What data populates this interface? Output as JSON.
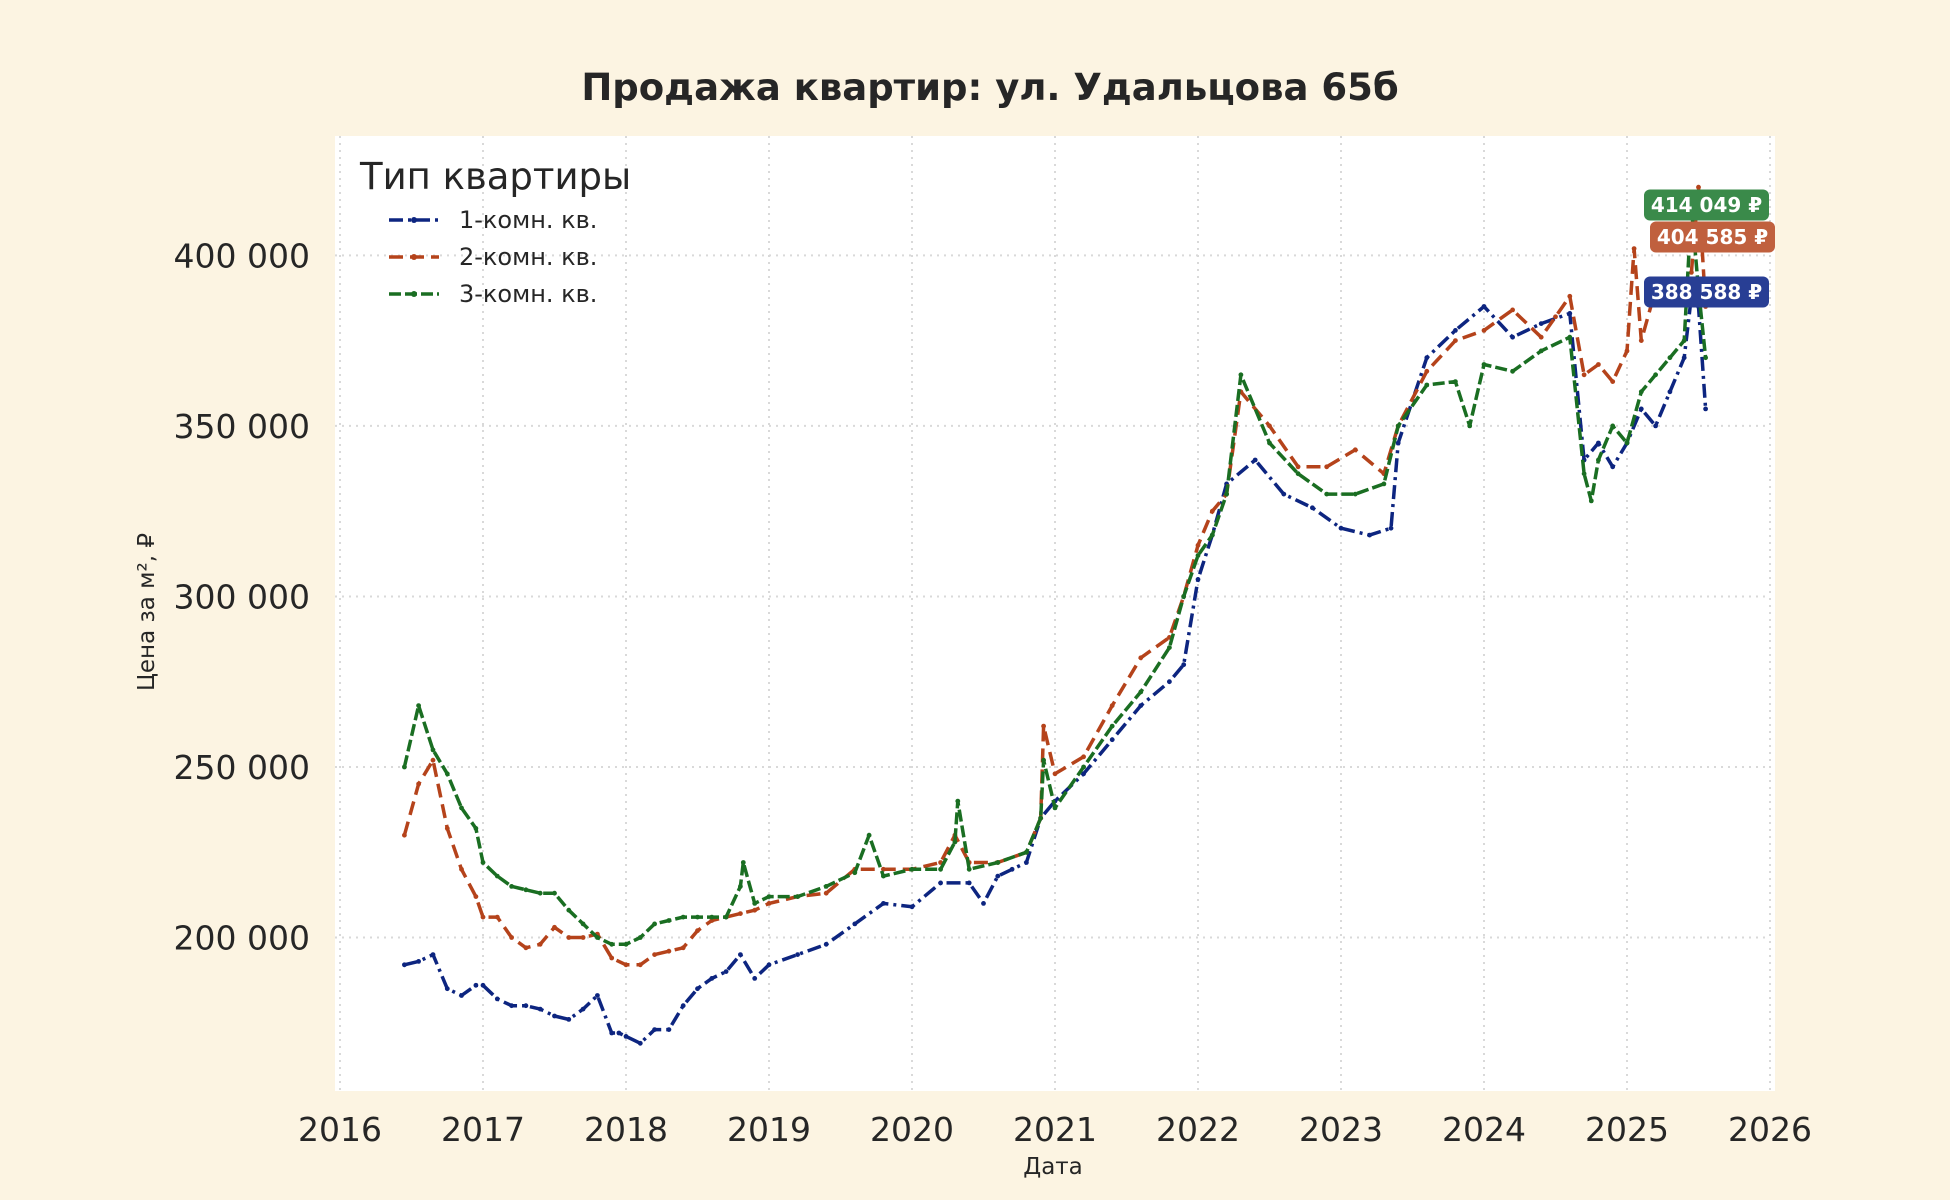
{
  "chart_data": {
    "type": "line",
    "title": "Продажа квартир: ул. Удальцова 65б",
    "xlabel": "Дата",
    "ylabel": "Цена за м², ₽",
    "xlim": [
      2016,
      2026
    ],
    "ylim": [
      155000,
      435000
    ],
    "x_ticks": [
      "2016",
      "2017",
      "2018",
      "2019",
      "2020",
      "2021",
      "2022",
      "2023",
      "2024",
      "2025",
      "2026"
    ],
    "y_ticks": [
      {
        "value": 200000,
        "label": "200 000"
      },
      {
        "value": 250000,
        "label": "250 000"
      },
      {
        "value": 300000,
        "label": "300 000"
      },
      {
        "value": 350000,
        "label": "350 000"
      },
      {
        "value": 400000,
        "label": "400 000"
      }
    ],
    "grid": true,
    "legend": {
      "title": "Тип квартиры",
      "placement": "top-left"
    },
    "series": [
      {
        "name": "1-комн. кв.",
        "color": "#0d2580",
        "style": "dashdot",
        "x": [
          2016.45,
          2016.55,
          2016.65,
          2016.75,
          2016.85,
          2016.95,
          2017.0,
          2017.1,
          2017.2,
          2017.3,
          2017.4,
          2017.5,
          2017.6,
          2017.7,
          2017.8,
          2017.9,
          2017.95,
          2018.0,
          2018.1,
          2018.2,
          2018.3,
          2018.4,
          2018.5,
          2018.6,
          2018.7,
          2018.8,
          2018.9,
          2019.0,
          2019.2,
          2019.4,
          2019.6,
          2019.8,
          2020.0,
          2020.2,
          2020.4,
          2020.5,
          2020.6,
          2020.7,
          2020.8,
          2020.9,
          2021.0,
          2021.2,
          2021.4,
          2021.6,
          2021.8,
          2021.9,
          2022.0,
          2022.1,
          2022.2,
          2022.4,
          2022.6,
          2022.8,
          2023.0,
          2023.2,
          2023.35,
          2023.4,
          2023.6,
          2023.8,
          2024.0,
          2024.2,
          2024.4,
          2024.6,
          2024.7,
          2024.8,
          2024.9,
          2025.0,
          2025.1,
          2025.2,
          2025.3,
          2025.4,
          2025.45,
          2025.5,
          2025.55
        ],
        "y": [
          192000,
          193000,
          195000,
          185000,
          183000,
          186000,
          186000,
          182000,
          180000,
          180000,
          179000,
          177000,
          176000,
          179000,
          183000,
          172000,
          172000,
          171000,
          169000,
          173000,
          173000,
          180000,
          185000,
          188000,
          190000,
          195000,
          188000,
          192000,
          195000,
          198000,
          204000,
          210000,
          209000,
          216000,
          216000,
          210000,
          218000,
          220000,
          222000,
          235000,
          240000,
          248000,
          258000,
          268000,
          275000,
          280000,
          305000,
          318000,
          333000,
          340000,
          330000,
          326000,
          320000,
          318000,
          320000,
          345000,
          370000,
          378000,
          385000,
          376000,
          380000,
          383000,
          340000,
          345000,
          338000,
          345000,
          355000,
          350000,
          360000,
          370000,
          388000,
          385000,
          355000
        ]
      },
      {
        "name": "2-комн. кв.",
        "color": "#b5431b",
        "style": "dashed",
        "x": [
          2016.45,
          2016.55,
          2016.65,
          2016.75,
          2016.85,
          2016.95,
          2017.0,
          2017.1,
          2017.2,
          2017.3,
          2017.4,
          2017.5,
          2017.6,
          2017.7,
          2017.8,
          2017.9,
          2018.0,
          2018.1,
          2018.2,
          2018.3,
          2018.4,
          2018.5,
          2018.6,
          2018.7,
          2018.8,
          2018.9,
          2019.0,
          2019.2,
          2019.4,
          2019.6,
          2019.8,
          2020.0,
          2020.2,
          2020.3,
          2020.4,
          2020.6,
          2020.8,
          2020.9,
          2020.92,
          2021.0,
          2021.2,
          2021.4,
          2021.6,
          2021.8,
          2021.9,
          2022.0,
          2022.1,
          2022.2,
          2022.3,
          2022.5,
          2022.7,
          2022.9,
          2023.1,
          2023.3,
          2023.4,
          2023.6,
          2023.8,
          2024.0,
          2024.2,
          2024.4,
          2024.5,
          2024.6,
          2024.7,
          2024.8,
          2024.9,
          2025.0,
          2025.05,
          2025.1,
          2025.2,
          2025.3,
          2025.4,
          2025.45,
          2025.5,
          2025.55
        ],
        "y": [
          230000,
          245000,
          252000,
          232000,
          220000,
          212000,
          206000,
          206000,
          200000,
          197000,
          198000,
          203000,
          200000,
          200000,
          201000,
          194000,
          192000,
          192000,
          195000,
          196000,
          197000,
          202000,
          205000,
          206000,
          207000,
          208000,
          210000,
          212000,
          213000,
          220000,
          220000,
          220000,
          222000,
          230000,
          222000,
          222000,
          225000,
          235000,
          262000,
          248000,
          253000,
          268000,
          282000,
          288000,
          300000,
          315000,
          325000,
          330000,
          360000,
          350000,
          338000,
          338000,
          343000,
          336000,
          350000,
          366000,
          375000,
          378000,
          384000,
          376000,
          382000,
          388000,
          365000,
          368000,
          363000,
          372000,
          402000,
          375000,
          390000,
          392000,
          388000,
          395000,
          420000,
          385000
        ]
      },
      {
        "name": "3-комн. кв.",
        "color": "#1a6e22",
        "style": "dashed-dot",
        "x": [
          2016.45,
          2016.55,
          2016.65,
          2016.75,
          2016.85,
          2016.95,
          2017.0,
          2017.1,
          2017.2,
          2017.3,
          2017.4,
          2017.5,
          2017.6,
          2017.7,
          2017.8,
          2017.9,
          2018.0,
          2018.1,
          2018.2,
          2018.3,
          2018.4,
          2018.5,
          2018.6,
          2018.7,
          2018.8,
          2018.82,
          2018.9,
          2019.0,
          2019.2,
          2019.4,
          2019.6,
          2019.7,
          2019.8,
          2020.0,
          2020.2,
          2020.3,
          2020.32,
          2020.4,
          2020.6,
          2020.8,
          2020.9,
          2020.92,
          2021.0,
          2021.2,
          2021.4,
          2021.6,
          2021.8,
          2021.9,
          2022.0,
          2022.1,
          2022.2,
          2022.3,
          2022.5,
          2022.7,
          2022.9,
          2023.1,
          2023.3,
          2023.4,
          2023.6,
          2023.8,
          2023.9,
          2024.0,
          2024.2,
          2024.4,
          2024.6,
          2024.7,
          2024.75,
          2024.8,
          2024.9,
          2025.0,
          2025.1,
          2025.2,
          2025.3,
          2025.4,
          2025.45,
          2025.5,
          2025.55
        ],
        "y": [
          250000,
          268000,
          255000,
          248000,
          238000,
          232000,
          222000,
          218000,
          215000,
          214000,
          213000,
          213000,
          208000,
          204000,
          200000,
          198000,
          198000,
          200000,
          204000,
          205000,
          206000,
          206000,
          206000,
          206000,
          215000,
          222000,
          210000,
          212000,
          212000,
          215000,
          219000,
          230000,
          218000,
          220000,
          220000,
          228000,
          240000,
          220000,
          222000,
          225000,
          235000,
          252000,
          238000,
          250000,
          262000,
          272000,
          285000,
          300000,
          312000,
          318000,
          330000,
          365000,
          345000,
          336000,
          330000,
          330000,
          333000,
          350000,
          362000,
          363000,
          350000,
          368000,
          366000,
          372000,
          376000,
          336000,
          328000,
          340000,
          350000,
          345000,
          360000,
          365000,
          370000,
          375000,
          414000,
          390000,
          370000
        ]
      }
    ],
    "end_labels": [
      {
        "series": "3-комн. кв.",
        "value": 414049,
        "text": "414 049 ₽",
        "color": "#3a8a4a"
      },
      {
        "series": "2-комн. кв.",
        "value": 404585,
        "text": "404 585 ₽",
        "color": "#c0603e"
      },
      {
        "series": "1-комн. кв.",
        "value": 388588,
        "text": "388 588 ₽",
        "color": "#283e94"
      }
    ]
  }
}
